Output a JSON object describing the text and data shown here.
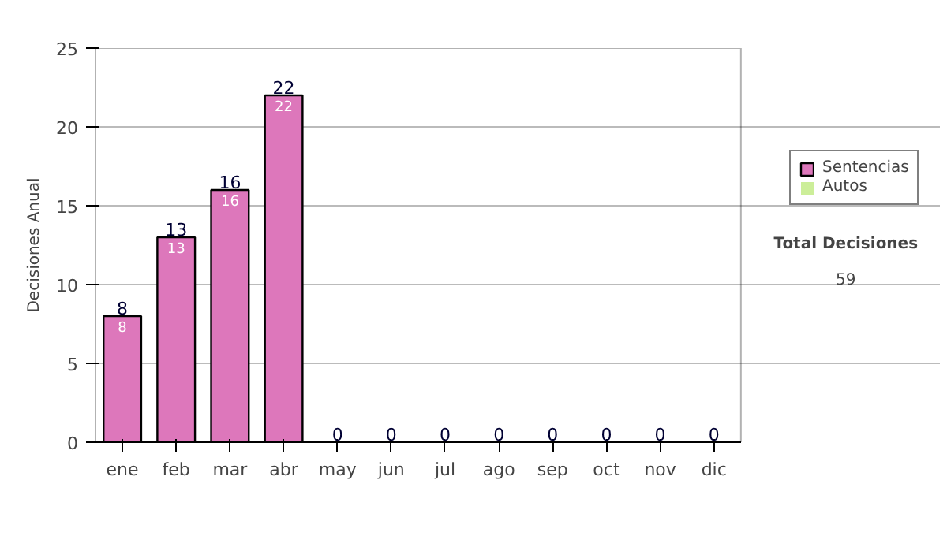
{
  "chart_data": {
    "type": "bar",
    "stacked": true,
    "ylabel": "Decisiones Anual",
    "categories": [
      "ene",
      "feb",
      "mar",
      "abr",
      "may",
      "jun",
      "jul",
      "ago",
      "sep",
      "oct",
      "nov",
      "dic"
    ],
    "series": [
      {
        "name": "Sentencias",
        "color": "#dd77bb",
        "values": [
          8,
          13,
          16,
          22,
          0,
          0,
          0,
          0,
          0,
          0,
          0,
          0
        ],
        "value_labels": [
          "8",
          "13",
          "16",
          "22",
          null,
          null,
          null,
          null,
          null,
          null,
          null,
          null
        ]
      },
      {
        "name": "Autos",
        "color": "#ccee99",
        "values": [
          0,
          0,
          0,
          0,
          0,
          0,
          0,
          0,
          0,
          0,
          0,
          0
        ]
      }
    ],
    "totals": [
      "8",
      "13",
      "16",
      "22",
      "0",
      "0",
      "0",
      "0",
      "0",
      "0",
      "0",
      "0"
    ],
    "ylim": [
      0,
      25
    ],
    "yticks": [
      0,
      5,
      10,
      15,
      20,
      25
    ],
    "grid": "y",
    "legend": "right",
    "annotations": [
      "Total Decisiones",
      "59"
    ]
  }
}
